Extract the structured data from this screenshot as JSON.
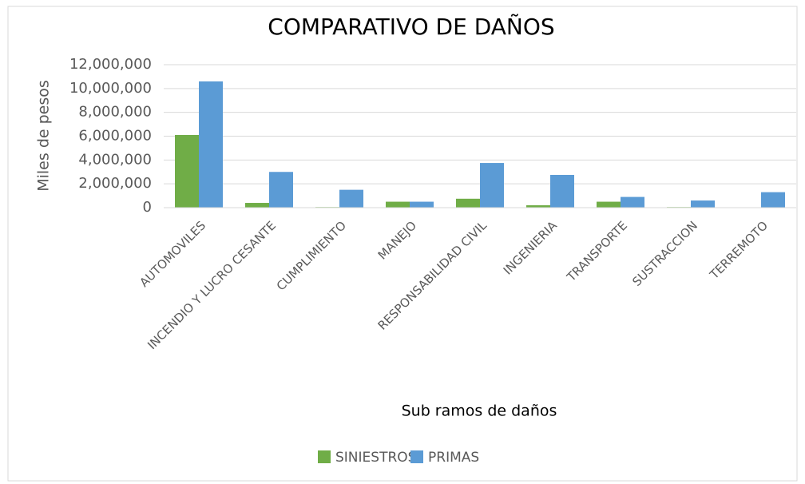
{
  "chart_data": {
    "type": "bar",
    "title": "COMPARATIVO DE DAÑOS",
    "x_label": "Sub ramos de daños",
    "y_label": "Miles de pesos",
    "categories": [
      "AUTOMOVILES",
      "INCENDIO Y LUCRO CESANTE",
      "CUMPLIMIENTO",
      "MANEJO",
      "RESPONSABILIDAD CIVIL",
      "INGENIERIA",
      "TRANSPORTE",
      "SUSTRACCION",
      "TERREMOTO"
    ],
    "series": [
      {
        "name": "SINIESTROS",
        "color": "#70ad47",
        "values": [
          6100000,
          400000,
          50000,
          500000,
          750000,
          200000,
          500000,
          50000,
          20000
        ]
      },
      {
        "name": "PRIMAS",
        "color": "#5b9bd5",
        "values": [
          10600000,
          3000000,
          1500000,
          500000,
          3750000,
          2750000,
          900000,
          600000,
          1300000
        ]
      }
    ],
    "ylim": [
      0,
      12000000
    ],
    "yticks": [
      0,
      {
        "value": 2000000,
        "label": "2,000,000"
      },
      {
        "value": 4000000,
        "label": "4,000,000"
      },
      {
        "value": 6000000,
        "label": "6,000,000"
      },
      {
        "value": 8000000,
        "label": "8,000,000"
      },
      {
        "value": 10000000,
        "label": "10,000,000"
      },
      {
        "value": 12000000,
        "label": "12,000,000"
      }
    ],
    "grid": true,
    "legend": "bottom"
  }
}
